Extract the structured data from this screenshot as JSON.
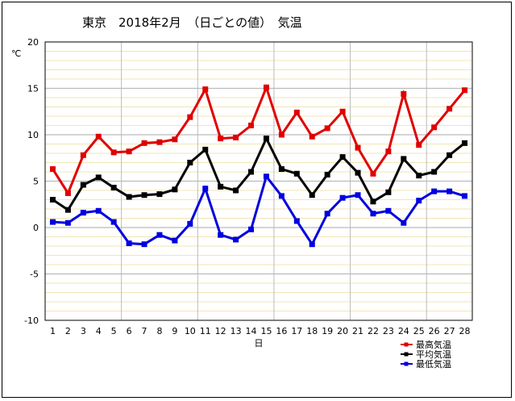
{
  "chart_data": {
    "type": "line",
    "title": "東京　2018年2月　（日ごとの値）　気温",
    "xlabel": "日",
    "ylabel": "℃",
    "ylim": [
      -10,
      20
    ],
    "y_ticks": [
      20,
      15,
      10,
      5,
      0,
      -5,
      -10
    ],
    "x": [
      1,
      2,
      3,
      4,
      5,
      6,
      7,
      8,
      9,
      10,
      11,
      12,
      13,
      14,
      15,
      16,
      17,
      18,
      19,
      20,
      21,
      22,
      23,
      24,
      25,
      26,
      27,
      28
    ],
    "x_tick_labels": [
      "1",
      "2",
      "3",
      "4",
      "5",
      "6",
      "7",
      "8",
      "9",
      "10",
      "11",
      "12",
      "13",
      "14",
      "15",
      "16",
      "17",
      "18",
      "19",
      "20",
      "21",
      "22",
      "23",
      "24",
      "25",
      "26",
      "27",
      "28"
    ],
    "grid": true,
    "legend_position": "bottom-right",
    "series": [
      {
        "name": "最高気温",
        "color": "#e00000",
        "values": [
          6.3,
          3.7,
          7.8,
          9.8,
          8.1,
          8.2,
          9.1,
          9.2,
          9.5,
          11.9,
          14.9,
          9.6,
          9.7,
          11.0,
          15.1,
          10.0,
          12.4,
          9.8,
          10.7,
          12.5,
          8.6,
          5.8,
          8.2,
          14.4,
          8.9,
          10.8,
          12.8,
          14.8
        ]
      },
      {
        "name": "平均気温",
        "color": "#000000",
        "values": [
          3.0,
          1.9,
          4.6,
          5.4,
          4.3,
          3.3,
          3.5,
          3.6,
          4.1,
          7.0,
          8.4,
          4.4,
          4.0,
          6.0,
          9.6,
          6.3,
          5.8,
          3.5,
          5.7,
          7.6,
          5.9,
          2.8,
          3.8,
          7.4,
          5.6,
          6.0,
          7.8,
          9.1
        ]
      },
      {
        "name": "最低気温",
        "color": "#0000e0",
        "values": [
          0.6,
          0.5,
          1.6,
          1.8,
          0.6,
          -1.7,
          -1.8,
          -0.8,
          -1.4,
          0.4,
          4.2,
          -0.8,
          -1.3,
          -0.2,
          5.5,
          3.4,
          0.7,
          -1.8,
          1.5,
          3.2,
          3.5,
          1.5,
          1.8,
          0.5,
          2.9,
          3.9,
          3.9,
          3.4
        ]
      }
    ]
  }
}
